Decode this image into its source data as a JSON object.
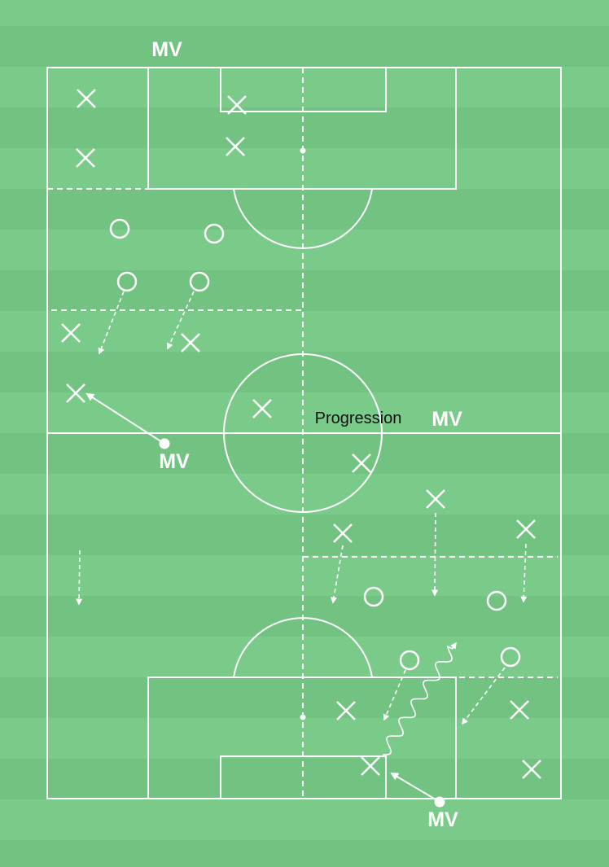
{
  "colors": {
    "grass_light": "#7acb8a",
    "grass_dark": "#72c381",
    "lines": "#ffffff",
    "label_text": "#111111"
  },
  "labels": {
    "mv_top": "MV",
    "mv_left": "MV",
    "mv_center_right": "MV",
    "mv_bottom": "MV",
    "progression": "Progression"
  },
  "legend_symbols": {
    "opponent": "cross-icon",
    "teammate": "circle-icon",
    "ball_carrier": "dot-icon"
  }
}
